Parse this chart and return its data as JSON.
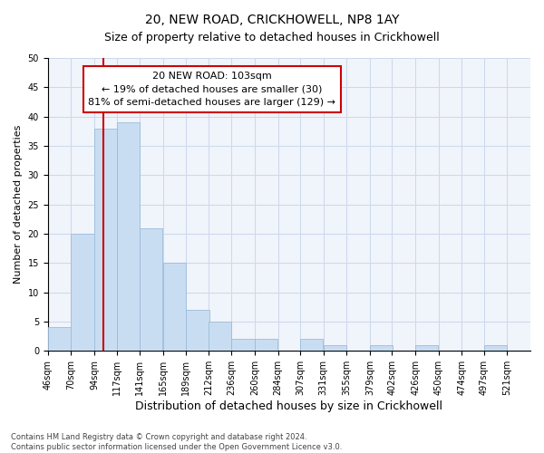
{
  "title": "20, NEW ROAD, CRICKHOWELL, NP8 1AY",
  "subtitle": "Size of property relative to detached houses in Crickhowell",
  "xlabel": "Distribution of detached houses by size in Crickhowell",
  "ylabel": "Number of detached properties",
  "bin_labels": [
    "46sqm",
    "70sqm",
    "94sqm",
    "117sqm",
    "141sqm",
    "165sqm",
    "189sqm",
    "212sqm",
    "236sqm",
    "260sqm",
    "284sqm",
    "307sqm",
    "331sqm",
    "355sqm",
    "379sqm",
    "402sqm",
    "426sqm",
    "450sqm",
    "474sqm",
    "497sqm",
    "521sqm"
  ],
  "bar_heights": [
    4,
    20,
    38,
    39,
    21,
    15,
    7,
    5,
    2,
    2,
    0,
    2,
    1,
    0,
    1,
    0,
    1,
    0,
    0,
    1,
    0
  ],
  "bar_color": "#c9ddf2",
  "bar_edge_color": "#9bbcd8",
  "vline_x": 103,
  "vline_color": "#cc0000",
  "ylim": [
    0,
    50
  ],
  "yticks": [
    0,
    5,
    10,
    15,
    20,
    25,
    30,
    35,
    40,
    45,
    50
  ],
  "annotation_text": "20 NEW ROAD: 103sqm\n← 19% of detached houses are smaller (30)\n81% of semi-detached houses are larger (129) →",
  "annotation_box_color": "#ffffff",
  "annotation_box_edge_color": "#cc0000",
  "footer_text": "Contains HM Land Registry data © Crown copyright and database right 2024.\nContains public sector information licensed under the Open Government Licence v3.0.",
  "bin_edges": [
    46,
    70,
    94,
    117,
    141,
    165,
    189,
    212,
    236,
    260,
    284,
    307,
    331,
    355,
    379,
    402,
    426,
    450,
    474,
    497,
    521
  ],
  "bin_width": 24,
  "title_fontsize": 10,
  "subtitle_fontsize": 9,
  "ylabel_fontsize": 8,
  "xlabel_fontsize": 9,
  "tick_fontsize": 7,
  "annot_fontsize": 8,
  "footer_fontsize": 6
}
